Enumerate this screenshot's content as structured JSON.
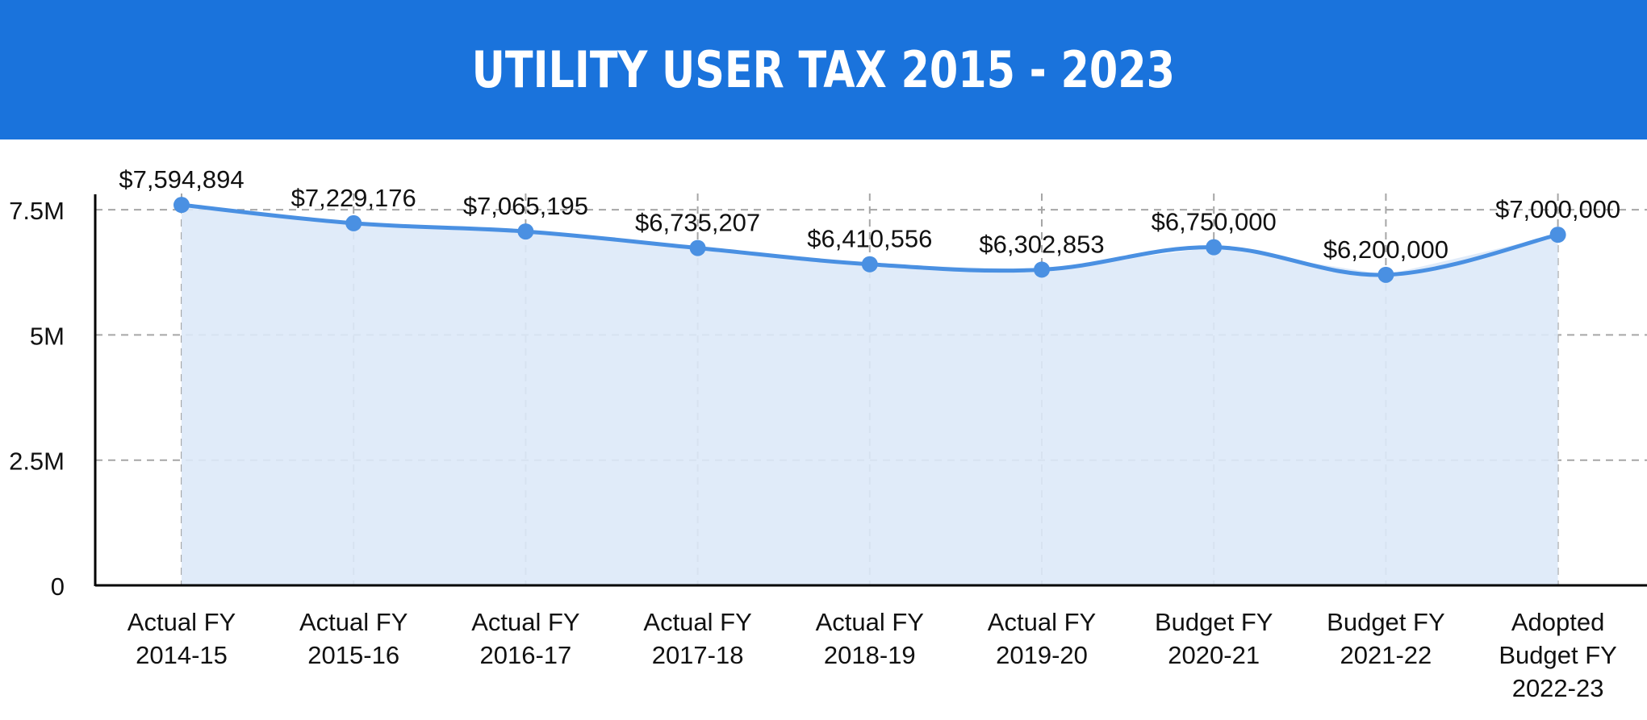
{
  "colors": {
    "banner": "#1a73dc",
    "line": "#4a90e2",
    "area": "#dde9f8",
    "grid": "#a6a6a6",
    "axis": "#000000",
    "text": "#111111"
  },
  "chart_data": {
    "type": "area",
    "title": "UTILITY USER TAX 2015 - 2023",
    "xlabel": "",
    "ylabel": "",
    "ylim": [
      0,
      8000000
    ],
    "yticks": [
      {
        "value": 0,
        "label": "0"
      },
      {
        "value": 2500000,
        "label": "2.5M"
      },
      {
        "value": 5000000,
        "label": "5M"
      },
      {
        "value": 7500000,
        "label": "7.5M"
      }
    ],
    "grid": true,
    "legend": "none",
    "categories": [
      [
        "Actual FY",
        "2014-15"
      ],
      [
        "Actual FY",
        "2015-16"
      ],
      [
        "Actual FY",
        "2016-17"
      ],
      [
        "Actual FY",
        "2017-18"
      ],
      [
        "Actual  FY",
        "2018-19"
      ],
      [
        "Actual FY",
        "2019-20"
      ],
      [
        "Budget FY",
        "2020-21"
      ],
      [
        "Budget FY",
        "2021-22"
      ],
      [
        "Adopted",
        "Budget FY",
        "2022-23"
      ]
    ],
    "values": [
      7594894,
      7229176,
      7065195,
      6735207,
      6410556,
      6302853,
      6750000,
      6200000,
      7000000
    ],
    "data_labels": [
      "$7,594,894",
      "$7,229,176",
      "$7,065,195",
      "$6,735,207",
      "$6,410,556",
      "$6,302,853",
      "$6,750,000",
      "$6,200,000",
      "$7,000,000"
    ]
  }
}
